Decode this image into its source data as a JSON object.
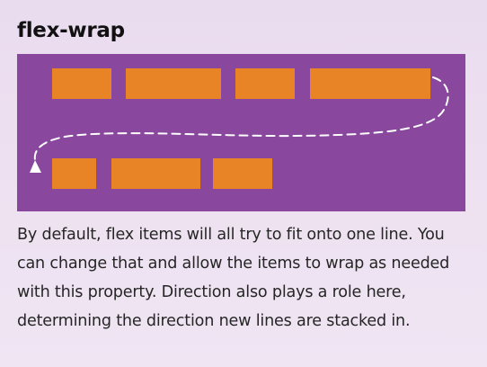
{
  "title": "flex-wrap",
  "description": "By default, flex items will all try to fit onto one line. You can change that and allow the items to wrap as needed with this property. Direction also plays a role here, determining the direction new lines are stacked in.",
  "diagram": {
    "container_color": "#89479d",
    "item_color": "#e88326",
    "arrow_color": "#ffffff",
    "rows": [
      {
        "item_count": 4
      },
      {
        "item_count": 3
      }
    ]
  }
}
